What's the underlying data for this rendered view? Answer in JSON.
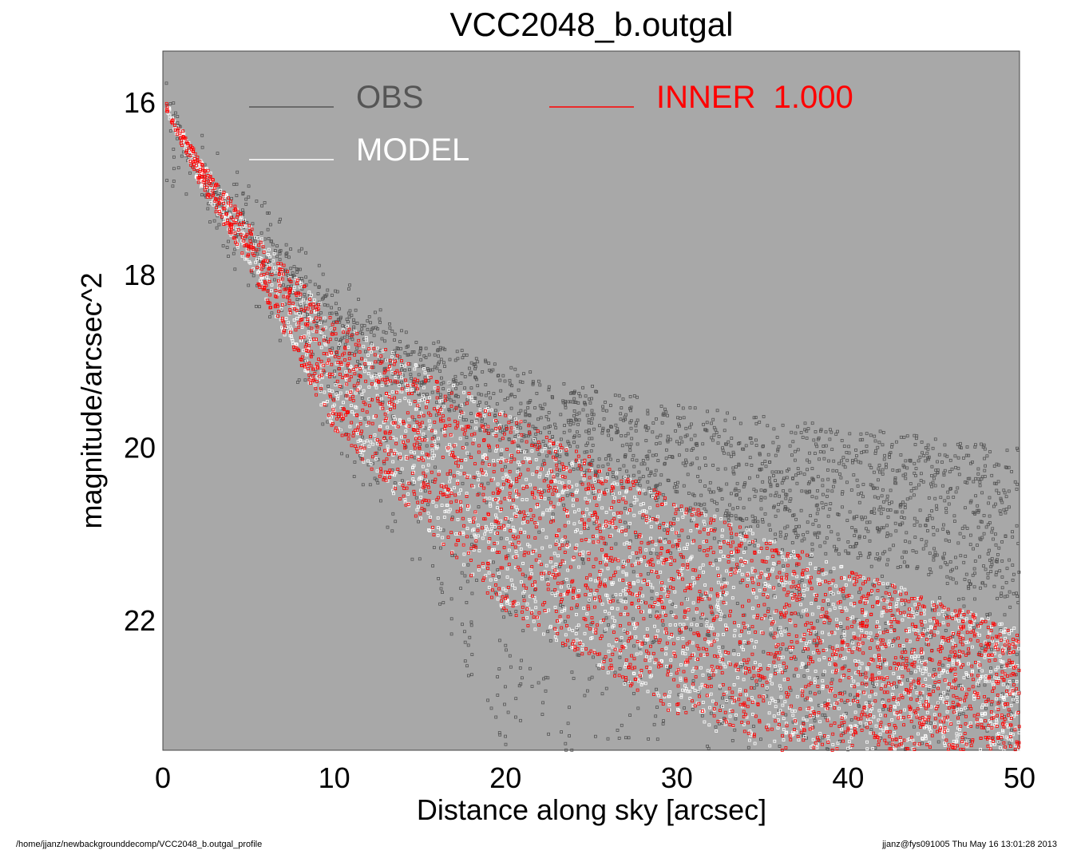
{
  "chart_data": {
    "type": "scatter",
    "title": "VCC2048_b.outgal",
    "xlabel": "Distance along sky [arcsec]",
    "ylabel": "magnitude/arcsec^2",
    "xlim": [
      0,
      50
    ],
    "ylim": [
      23.5,
      15.4
    ],
    "y_inverted": true,
    "x_ticks": [
      0,
      10,
      20,
      30,
      40,
      50
    ],
    "y_ticks": [
      16,
      18,
      20,
      22
    ],
    "background_color": "#a8a8a8",
    "legend": [
      {
        "label": "OBS",
        "color": "#555555",
        "text_color": "#555555"
      },
      {
        "label": "MODEL",
        "color": "#ffffff",
        "text_color": "#ffffff"
      },
      {
        "label": "INNER  1.000",
        "color": "#ff0000",
        "text_color": "#ff0000"
      }
    ],
    "series": [
      {
        "name": "OBS",
        "color": "#555555",
        "description_points": [
          [
            0.2,
            15.9
          ],
          [
            2,
            16.9
          ],
          [
            5,
            17.5
          ],
          [
            10,
            18.6
          ],
          [
            20,
            19.5
          ],
          [
            30,
            20.1
          ],
          [
            40,
            20.5
          ],
          [
            50,
            20.9
          ]
        ],
        "scatter_low_edge": [
          [
            2,
            16.3
          ],
          [
            10,
            18.0
          ],
          [
            20,
            19.2
          ],
          [
            30,
            19.8
          ],
          [
            40,
            20.0
          ],
          [
            50,
            20.1
          ]
        ],
        "scatter_high_edge": [
          [
            2,
            17.2
          ],
          [
            10,
            20.0
          ],
          [
            15,
            21.5
          ],
          [
            20,
            23.5
          ],
          [
            30,
            23.5
          ],
          [
            50,
            23.5
          ]
        ]
      },
      {
        "name": "MODEL",
        "color": "#ffffff",
        "upper_envelope": [
          [
            0.2,
            16.0
          ],
          [
            2,
            16.6
          ],
          [
            5,
            17.4
          ],
          [
            10,
            18.5
          ],
          [
            20,
            19.6
          ],
          [
            30,
            20.6
          ],
          [
            40,
            21.4
          ],
          [
            50,
            22.1
          ]
        ],
        "lower_envelope": [
          [
            0.2,
            16.1
          ],
          [
            2,
            16.9
          ],
          [
            5,
            17.9
          ],
          [
            10,
            19.8
          ],
          [
            20,
            21.9
          ],
          [
            30,
            23.1
          ],
          [
            35,
            23.5
          ]
        ]
      },
      {
        "name": "INNER  1.000",
        "color": "#ff0000",
        "upper_envelope": [
          [
            0.2,
            16.0
          ],
          [
            2,
            16.6
          ],
          [
            5,
            17.4
          ],
          [
            10,
            18.5
          ],
          [
            20,
            19.6
          ],
          [
            30,
            20.6
          ],
          [
            40,
            21.4
          ],
          [
            50,
            22.1
          ]
        ],
        "lower_envelope": [
          [
            0.2,
            16.1
          ],
          [
            2,
            16.9
          ],
          [
            5,
            17.9
          ],
          [
            10,
            19.8
          ],
          [
            20,
            21.9
          ],
          [
            30,
            23.1
          ],
          [
            35,
            23.5
          ]
        ]
      }
    ]
  },
  "footer": {
    "left": "/home/jjanz/newbackgrounddecomp/VCC2048_b.outgal_profile",
    "right": "jjanz@fys091005  Thu May 16 13:01:28 2013"
  }
}
